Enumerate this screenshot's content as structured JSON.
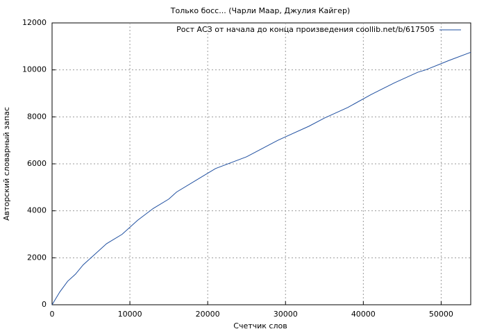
{
  "chart_data": {
    "type": "line",
    "title": "Только босс... (Чарли Маар, Джулия Кайгер)",
    "x_label": "Счетчик слов",
    "y_label": "Авторский словарный запас",
    "x": [
      0,
      1000,
      2000,
      3000,
      4000,
      5000,
      7000,
      9000,
      11000,
      13000,
      15000,
      16000,
      19000,
      21000,
      25000,
      29000,
      30000,
      33000,
      35000,
      38000,
      41000,
      44000,
      47000,
      48000,
      51000,
      53800
    ],
    "series": [
      {
        "name": "Рост АСЗ от начала до конца произведения coollib.net/b/617505",
        "color": "#1f4fa0",
        "values": [
          0,
          550,
          1000,
          1300,
          1700,
          2000,
          2600,
          3000,
          3600,
          4100,
          4500,
          4800,
          5400,
          5800,
          6300,
          7000,
          7150,
          7600,
          7950,
          8400,
          8950,
          9450,
          9900,
          10000,
          10400,
          10750
        ]
      }
    ],
    "xlim": [
      0,
      53800
    ],
    "ylim": [
      0,
      12000
    ],
    "xticks": [
      0,
      10000,
      20000,
      30000,
      40000,
      50000
    ],
    "yticks": [
      0,
      2000,
      4000,
      6000,
      8000,
      10000,
      12000
    ],
    "grid": true,
    "legend": "top-right"
  }
}
